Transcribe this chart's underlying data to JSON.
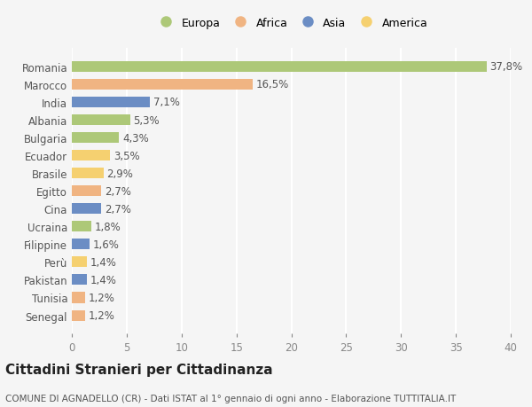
{
  "countries": [
    "Romania",
    "Marocco",
    "India",
    "Albania",
    "Bulgaria",
    "Ecuador",
    "Brasile",
    "Egitto",
    "Cina",
    "Ucraina",
    "Filippine",
    "Perù",
    "Pakistan",
    "Tunisia",
    "Senegal"
  ],
  "values": [
    37.8,
    16.5,
    7.1,
    5.3,
    4.3,
    3.5,
    2.9,
    2.7,
    2.7,
    1.8,
    1.6,
    1.4,
    1.4,
    1.2,
    1.2
  ],
  "labels": [
    "37,8%",
    "16,5%",
    "7,1%",
    "5,3%",
    "4,3%",
    "3,5%",
    "2,9%",
    "2,7%",
    "2,7%",
    "1,8%",
    "1,6%",
    "1,4%",
    "1,4%",
    "1,2%",
    "1,2%"
  ],
  "colors": [
    "#adc878",
    "#f0b482",
    "#6b8dc4",
    "#adc878",
    "#adc878",
    "#f5d070",
    "#f5d070",
    "#f0b482",
    "#6b8dc4",
    "#adc878",
    "#6b8dc4",
    "#f5d070",
    "#6b8dc4",
    "#f0b482",
    "#f0b482"
  ],
  "continent_labels": [
    "Europa",
    "Africa",
    "Asia",
    "America"
  ],
  "continent_colors": [
    "#adc878",
    "#f0b482",
    "#6b8dc4",
    "#f5d070"
  ],
  "xlim": [
    0,
    40
  ],
  "xticks": [
    0,
    5,
    10,
    15,
    20,
    25,
    30,
    35,
    40
  ],
  "title": "Cittadini Stranieri per Cittadinanza",
  "subtitle": "COMUNE DI AGNADELLO (CR) - Dati ISTAT al 1° gennaio di ogni anno - Elaborazione TUTTITALIA.IT",
  "bg_color": "#f5f5f5",
  "grid_color": "#ffffff",
  "bar_height": 0.6,
  "label_fontsize": 8.5,
  "title_fontsize": 11,
  "subtitle_fontsize": 7.5,
  "legend_fontsize": 9,
  "tick_fontsize": 8.5
}
